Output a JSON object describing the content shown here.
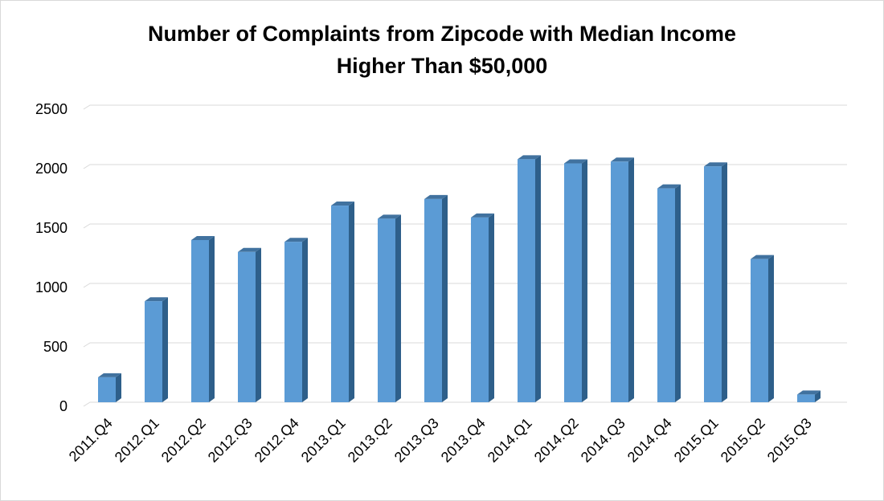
{
  "chart_data": {
    "type": "bar",
    "title_lines": [
      "Number of Complaints from Zipcode with Median Income",
      "Higher Than $50,000"
    ],
    "xlabel": "",
    "ylabel": "",
    "categories": [
      "2011.Q4",
      "2012.Q1",
      "2012.Q2",
      "2012.Q3",
      "2012.Q4",
      "2013.Q1",
      "2013.Q2",
      "2013.Q3",
      "2013.Q4",
      "2014.Q1",
      "2014.Q2",
      "2014.Q3",
      "2014.Q4",
      "2015.Q1",
      "2015.Q2",
      "2015.Q3"
    ],
    "values": [
      210,
      850,
      1365,
      1265,
      1350,
      1655,
      1545,
      1710,
      1555,
      2045,
      2010,
      2025,
      1800,
      1985,
      1205,
      65
    ],
    "ylim": [
      0,
      2500
    ],
    "yticks": [
      "0",
      "500",
      "1000",
      "1500",
      "2000",
      "2500"
    ],
    "grid": true,
    "colors": {
      "bar_front": "#5B9BD5",
      "bar_side": "#2E5F8A",
      "bar_top": "#41729F",
      "grid": "#D9D9D9"
    }
  }
}
